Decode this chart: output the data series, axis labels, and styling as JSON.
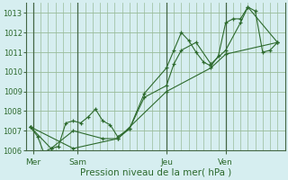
{
  "xlabel": "Pression niveau de la mer( hPa )",
  "bg_color": "#d6eef0",
  "grid_color": "#99bb99",
  "line_color": "#2d6a2d",
  "ylim": [
    1006.0,
    1013.5
  ],
  "yticks": [
    1006,
    1007,
    1008,
    1009,
    1010,
    1011,
    1012,
    1013
  ],
  "xlim": [
    0,
    17.5
  ],
  "day_labels": [
    "Mer",
    "Sam",
    "Jeu",
    "Ven"
  ],
  "day_positions": [
    0.5,
    3.5,
    9.5,
    13.5
  ],
  "vline_positions": [
    0.5,
    3.5,
    9.5,
    13.5
  ],
  "lines": [
    [
      [
        0.3,
        1007.2
      ],
      [
        0.8,
        1006.7
      ],
      [
        1.2,
        1005.9
      ],
      [
        1.7,
        1006.1
      ],
      [
        2.2,
        1006.2
      ],
      [
        2.7,
        1007.4
      ],
      [
        3.2,
        1007.5
      ],
      [
        3.7,
        1007.4
      ],
      [
        4.2,
        1007.7
      ],
      [
        4.7,
        1008.1
      ],
      [
        5.2,
        1007.5
      ],
      [
        5.7,
        1007.3
      ],
      [
        6.2,
        1006.7
      ],
      [
        7.0,
        1007.1
      ],
      [
        8.0,
        1008.9
      ],
      [
        9.5,
        1010.2
      ],
      [
        10.0,
        1011.1
      ],
      [
        10.5,
        1012.0
      ],
      [
        11.0,
        1011.6
      ],
      [
        11.5,
        1011.0
      ],
      [
        12.0,
        1010.5
      ],
      [
        12.5,
        1010.3
      ],
      [
        13.0,
        1010.8
      ],
      [
        13.5,
        1012.5
      ],
      [
        14.0,
        1012.7
      ],
      [
        14.5,
        1012.7
      ],
      [
        15.0,
        1013.3
      ],
      [
        15.5,
        1013.1
      ],
      [
        16.0,
        1011.0
      ],
      [
        16.5,
        1011.1
      ],
      [
        17.0,
        1011.5
      ]
    ],
    [
      [
        0.3,
        1007.2
      ],
      [
        1.7,
        1006.1
      ],
      [
        3.2,
        1007.0
      ],
      [
        5.2,
        1006.6
      ],
      [
        6.2,
        1006.6
      ],
      [
        7.0,
        1007.1
      ],
      [
        8.0,
        1008.7
      ],
      [
        9.5,
        1009.3
      ],
      [
        10.0,
        1010.4
      ],
      [
        10.5,
        1011.1
      ],
      [
        11.5,
        1011.5
      ],
      [
        12.5,
        1010.4
      ],
      [
        13.5,
        1011.1
      ],
      [
        14.5,
        1012.5
      ],
      [
        15.0,
        1013.3
      ],
      [
        17.0,
        1011.5
      ]
    ],
    [
      [
        0.3,
        1007.2
      ],
      [
        3.2,
        1006.1
      ],
      [
        6.2,
        1006.6
      ],
      [
        9.5,
        1009.0
      ],
      [
        12.5,
        1010.2
      ],
      [
        13.5,
        1010.9
      ],
      [
        17.0,
        1011.5
      ]
    ]
  ]
}
